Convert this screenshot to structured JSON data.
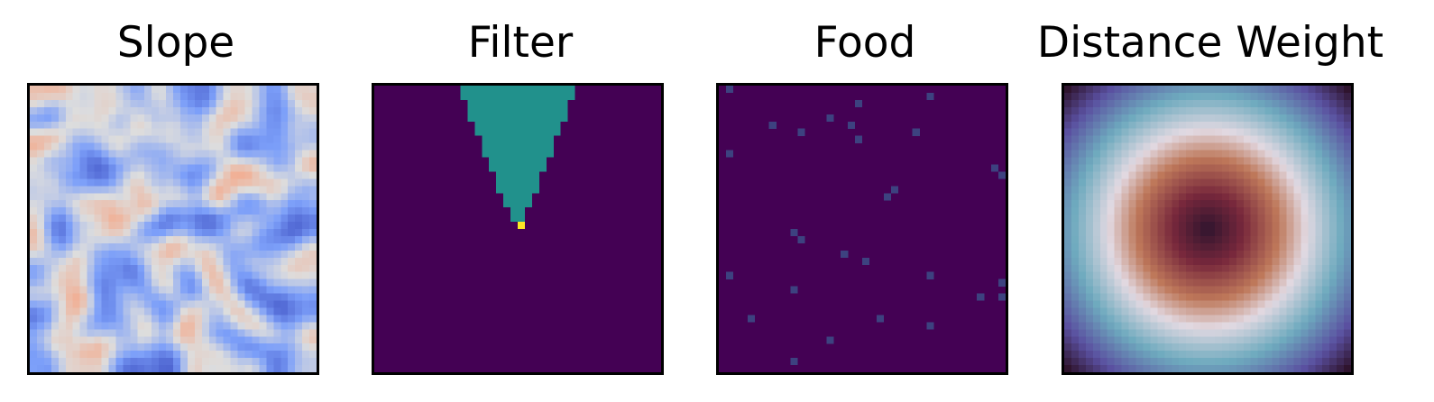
{
  "chart_data": [
    {
      "type": "heatmap",
      "title": "Slope",
      "colormap": "coolwarm",
      "grid_size": 40,
      "value_range": [
        0,
        1
      ],
      "pattern": "random smooth terrain slope field, mostly low (blue) with a few high (light orange) spots",
      "ticks": false
    },
    {
      "type": "heatmap",
      "title": "Filter",
      "colormap": "viridis",
      "grid_size": 40,
      "values_legend": {
        "outside": 0,
        "cone": 0.5,
        "origin": 1
      },
      "origin_cell": [
        20,
        19
      ],
      "cone_direction": "up",
      "ticks": false
    },
    {
      "type": "heatmap",
      "title": "Food",
      "colormap": "viridis",
      "grid_size": 40,
      "background_value": 0,
      "food_cells": [
        [
          1,
          0
        ],
        [
          29,
          1
        ],
        [
          19,
          2
        ],
        [
          15,
          4
        ],
        [
          7,
          5
        ],
        [
          18,
          5
        ],
        [
          11,
          6
        ],
        [
          27,
          6
        ],
        [
          19,
          7
        ],
        [
          1,
          9
        ],
        [
          38,
          11
        ],
        [
          39,
          12
        ],
        [
          24,
          14
        ],
        [
          23,
          15
        ],
        [
          10,
          20
        ],
        [
          11,
          21
        ],
        [
          17,
          23
        ],
        [
          20,
          24
        ],
        [
          1,
          26
        ],
        [
          29,
          26
        ],
        [
          10,
          28
        ],
        [
          36,
          29
        ],
        [
          4,
          32
        ],
        [
          22,
          32
        ],
        [
          29,
          33
        ],
        [
          15,
          35
        ],
        [
          39,
          27
        ],
        [
          39,
          29
        ],
        [
          10,
          38
        ]
      ],
      "food_value": 0.2,
      "ticks": false
    },
    {
      "type": "heatmap",
      "title": "Distance Weight",
      "colormap": "twilight_shifted",
      "grid_size": 40,
      "center_cell": [
        19.5,
        19.5
      ],
      "pattern": "radial: value increases with distance from center",
      "ticks": false
    }
  ],
  "colors": {
    "background": "#ffffff",
    "axes_edge": "#000000"
  }
}
